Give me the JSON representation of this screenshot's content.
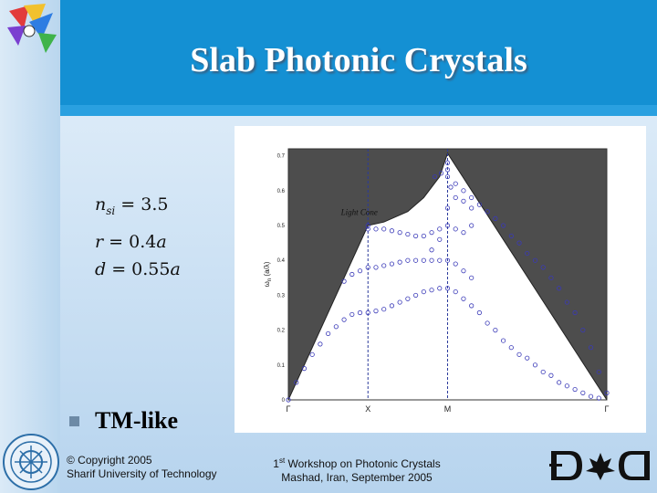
{
  "slide": {
    "title": "Slab Photonic Crystals",
    "params": {
      "n_sym": "n",
      "n_sub": "si",
      "n_val": "= 3.5",
      "r_sym": "r",
      "r_val": "= 0.4",
      "r_unit": "a",
      "d_sym": "d",
      "d_val": "= 0.55",
      "d_unit": "a"
    },
    "bullet": "TM-like",
    "footer_left": [
      "© Copyright 2005",
      "Sharif University of Technology"
    ],
    "footer_center_line1_pre": "1",
    "footer_center_line1_sup": "st",
    "footer_center_line1_post": " Workshop on Photonic Crystals",
    "footer_center_line2": "Mashad, Iran, September 2005",
    "colors": {
      "header": "#1490d3",
      "light_cone": "#4d4d4d",
      "markers": "#3a3ab8",
      "divider": "#2b3a9c"
    }
  },
  "chart_data": {
    "type": "scatter",
    "ylabel_main": "ω",
    "ylabel_sub": "n",
    "ylabel_unit": "(a/λ)",
    "xticks": [
      "Γ",
      "X",
      "M",
      "Γ"
    ],
    "yticks": [
      "0",
      "0.1",
      "0.2",
      "0.3",
      "0.4",
      "0.5",
      "0.6",
      "0.7"
    ],
    "ylim": [
      0,
      0.72
    ],
    "xlim": [
      0,
      2
    ],
    "annotation": "Light Cone",
    "light_line": [
      [
        0,
        0
      ],
      [
        0.5,
        0.5
      ],
      [
        0.6,
        0.51
      ],
      [
        0.75,
        0.54
      ],
      [
        0.85,
        0.58
      ],
      [
        0.95,
        0.64
      ],
      [
        1.0,
        0.707
      ],
      [
        2,
        0
      ]
    ],
    "series": [
      {
        "points": [
          [
            0.0,
            0.0
          ],
          [
            0.05,
            0.05
          ],
          [
            0.1,
            0.09
          ],
          [
            0.15,
            0.13
          ],
          [
            0.2,
            0.16
          ],
          [
            0.25,
            0.19
          ],
          [
            0.3,
            0.21
          ],
          [
            0.35,
            0.23
          ],
          [
            0.4,
            0.245
          ],
          [
            0.45,
            0.25
          ],
          [
            0.5,
            0.25
          ],
          [
            0.55,
            0.255
          ],
          [
            0.6,
            0.26
          ],
          [
            0.65,
            0.27
          ],
          [
            0.7,
            0.28
          ],
          [
            0.75,
            0.29
          ],
          [
            0.8,
            0.3
          ],
          [
            0.85,
            0.31
          ],
          [
            0.9,
            0.315
          ],
          [
            0.95,
            0.32
          ],
          [
            1.0,
            0.32
          ],
          [
            1.05,
            0.31
          ],
          [
            1.1,
            0.29
          ],
          [
            1.15,
            0.27
          ],
          [
            1.2,
            0.25
          ],
          [
            1.25,
            0.22
          ],
          [
            1.3,
            0.2
          ],
          [
            1.35,
            0.17
          ],
          [
            1.4,
            0.15
          ],
          [
            1.45,
            0.13
          ],
          [
            1.5,
            0.12
          ],
          [
            1.55,
            0.1
          ],
          [
            1.6,
            0.08
          ],
          [
            1.65,
            0.07
          ],
          [
            1.7,
            0.05
          ],
          [
            1.75,
            0.04
          ],
          [
            1.8,
            0.03
          ],
          [
            1.85,
            0.02
          ],
          [
            1.9,
            0.01
          ],
          [
            1.95,
            0.005
          ]
        ]
      },
      {
        "points": [
          [
            0.35,
            0.34
          ],
          [
            0.4,
            0.36
          ],
          [
            0.45,
            0.37
          ],
          [
            0.5,
            0.38
          ],
          [
            0.55,
            0.38
          ],
          [
            0.6,
            0.385
          ],
          [
            0.65,
            0.39
          ],
          [
            0.7,
            0.395
          ],
          [
            0.75,
            0.4
          ],
          [
            0.8,
            0.4
          ],
          [
            0.85,
            0.4
          ],
          [
            0.9,
            0.4
          ],
          [
            0.95,
            0.4
          ],
          [
            1.0,
            0.4
          ],
          [
            1.05,
            0.39
          ],
          [
            1.1,
            0.37
          ],
          [
            1.15,
            0.35
          ]
        ]
      },
      {
        "points": [
          [
            0.5,
            0.49
          ],
          [
            0.55,
            0.49
          ],
          [
            0.6,
            0.49
          ],
          [
            0.65,
            0.485
          ],
          [
            0.7,
            0.48
          ],
          [
            0.75,
            0.475
          ],
          [
            0.8,
            0.47
          ],
          [
            0.85,
            0.47
          ],
          [
            0.9,
            0.48
          ],
          [
            0.95,
            0.49
          ],
          [
            1.0,
            0.5
          ],
          [
            1.05,
            0.49
          ],
          [
            1.1,
            0.48
          ],
          [
            1.15,
            0.5
          ]
        ]
      },
      {
        "points": [
          [
            0.5,
            0.5
          ],
          [
            0.9,
            0.43
          ],
          [
            0.95,
            0.46
          ],
          [
            1.0,
            0.55
          ],
          [
            1.05,
            0.58
          ],
          [
            1.1,
            0.57
          ],
          [
            1.15,
            0.55
          ]
        ]
      },
      {
        "points": [
          [
            0.92,
            0.64
          ],
          [
            0.96,
            0.65
          ],
          [
            1.0,
            0.68
          ],
          [
            1.0,
            0.66
          ],
          [
            1.0,
            0.64
          ],
          [
            1.02,
            0.61
          ],
          [
            1.05,
            0.62
          ],
          [
            1.1,
            0.6
          ],
          [
            1.15,
            0.58
          ],
          [
            1.2,
            0.56
          ],
          [
            1.25,
            0.54
          ],
          [
            1.3,
            0.52
          ],
          [
            1.35,
            0.5
          ],
          [
            1.4,
            0.47
          ],
          [
            1.45,
            0.45
          ],
          [
            1.5,
            0.42
          ],
          [
            1.55,
            0.4
          ],
          [
            1.6,
            0.38
          ],
          [
            1.65,
            0.35
          ],
          [
            1.7,
            0.32
          ],
          [
            1.75,
            0.28
          ],
          [
            1.8,
            0.25
          ],
          [
            1.85,
            0.2
          ],
          [
            1.9,
            0.15
          ],
          [
            1.95,
            0.08
          ],
          [
            2.0,
            0.02
          ]
        ]
      }
    ]
  }
}
